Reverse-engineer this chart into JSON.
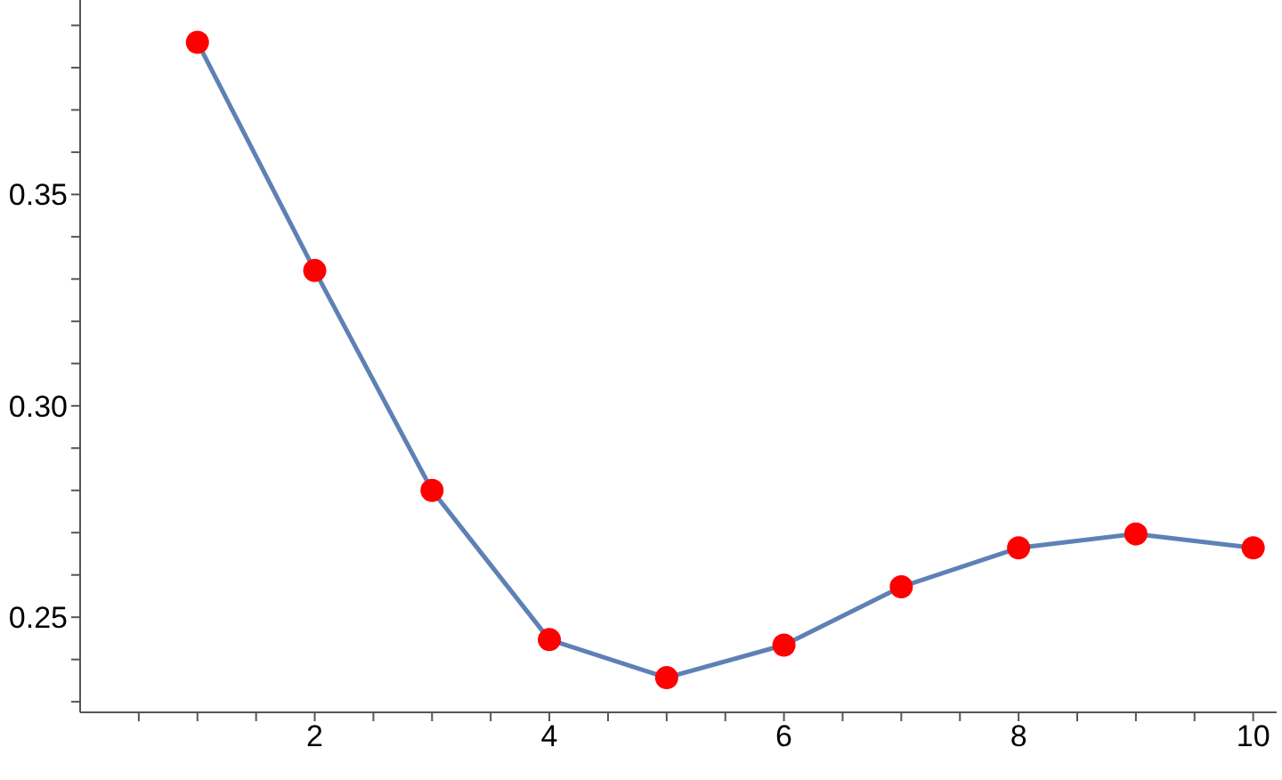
{
  "chart_data": {
    "type": "line",
    "x": [
      1,
      2,
      3,
      4,
      5,
      6,
      7,
      8,
      9,
      10
    ],
    "series": [
      {
        "color": "#5e81b5",
        "colors": [
          "#ff0000",
          "#ff0000",
          "#ff0000",
          "#ff0000",
          "#ff0000",
          "#ff0000",
          "#ff0000",
          "#ff0000",
          "#ff0000",
          "#ff0000"
        ],
        "values": [
          0.386,
          0.332,
          0.28,
          0.2447,
          0.2357,
          0.2434,
          0.2572,
          0.2664,
          0.2697,
          0.2664
        ]
      }
    ],
    "xlim": [
      0,
      10.2
    ],
    "ylim": [
      0.2275,
      0.396
    ],
    "xticks": [
      {
        "value": 0.5,
        "label": null
      },
      {
        "value": 1,
        "label": null
      },
      {
        "value": 1.5,
        "label": null
      },
      {
        "value": 2,
        "label": "2"
      },
      {
        "value": 2.5,
        "label": null
      },
      {
        "value": 3,
        "label": null
      },
      {
        "value": 3.5,
        "label": null
      },
      {
        "value": 4,
        "label": "4"
      },
      {
        "value": 4.5,
        "label": null
      },
      {
        "value": 5,
        "label": null
      },
      {
        "value": 5.5,
        "label": null
      },
      {
        "value": 6,
        "label": "6"
      },
      {
        "value": 6.5,
        "label": null
      },
      {
        "value": 7,
        "label": null
      },
      {
        "value": 7.5,
        "label": null
      },
      {
        "value": 8,
        "label": "8"
      },
      {
        "value": 8.5,
        "label": null
      },
      {
        "value": 9,
        "label": null
      },
      {
        "value": 9.5,
        "label": null
      },
      {
        "value": 10,
        "label": "10"
      }
    ],
    "yticks": [
      {
        "value": 0.23,
        "label": null
      },
      {
        "value": 0.24,
        "label": null
      },
      {
        "value": 0.25,
        "label": "0.25"
      },
      {
        "value": 0.26,
        "label": null
      },
      {
        "value": 0.27,
        "label": null
      },
      {
        "value": 0.28,
        "label": null
      },
      {
        "value": 0.29,
        "label": null
      },
      {
        "value": 0.3,
        "label": "0.30"
      },
      {
        "value": 0.31,
        "label": null
      },
      {
        "value": 0.32,
        "label": null
      },
      {
        "value": 0.33,
        "label": null
      },
      {
        "value": 0.34,
        "label": null
      },
      {
        "value": 0.35,
        "label": "0.35"
      },
      {
        "value": 0.36,
        "label": null
      },
      {
        "value": 0.37,
        "label": null
      },
      {
        "value": 0.38,
        "label": null
      },
      {
        "value": 0.39,
        "label": null
      }
    ],
    "grid": false,
    "legend": false,
    "marker": "circle",
    "line_style": "solid"
  }
}
